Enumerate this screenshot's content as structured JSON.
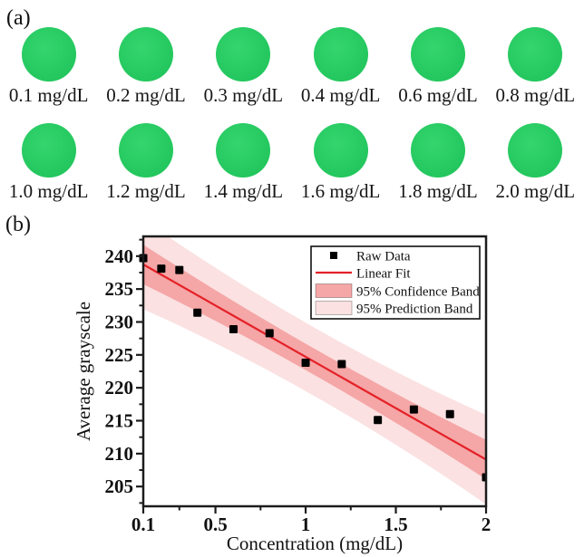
{
  "panel_a": {
    "label": "(a)",
    "circle_color": "#1ed05e",
    "rows": [
      {
        "samples": [
          {
            "label": "0.1 mg/dL"
          },
          {
            "label": "0.2 mg/dL"
          },
          {
            "label": "0.3 mg/dL"
          },
          {
            "label": "0.4 mg/dL"
          },
          {
            "label": "0.6 mg/dL"
          },
          {
            "label": "0.8 mg/dL"
          }
        ]
      },
      {
        "samples": [
          {
            "label": "1.0 mg/dL"
          },
          {
            "label": "1.2 mg/dL"
          },
          {
            "label": "1.4 mg/dL"
          },
          {
            "label": "1.6 mg/dL"
          },
          {
            "label": "1.8 mg/dL"
          },
          {
            "label": "2.0 mg/dL"
          }
        ]
      }
    ]
  },
  "panel_b": {
    "label": "(b)"
  },
  "chart_data": {
    "type": "scatter",
    "title": "",
    "xlabel": "Concentration (mg/dL)",
    "ylabel": "Average grayscale",
    "xlim": [
      0.1,
      2.0
    ],
    "ylim": [
      202,
      243
    ],
    "grid": false,
    "frame_color": "#1c1c1c",
    "x_major_ticks": [
      0.1,
      0.5,
      1.0,
      1.5,
      2.0
    ],
    "x_major_labels": [
      "0.1",
      "0.5",
      "1",
      "1.5",
      "2"
    ],
    "x_minor_ticks": [
      0.3,
      0.75,
      1.25,
      1.75
    ],
    "y_major_ticks": [
      205,
      210,
      215,
      220,
      225,
      230,
      235,
      240
    ],
    "y_minor_ticks": [
      202.5,
      207.5,
      212.5,
      217.5,
      222.5,
      227.5,
      232.5,
      237.5,
      242.5
    ],
    "raw_data": {
      "name": "Raw Data",
      "marker": "square",
      "color": "#000000",
      "x": [
        0.1,
        0.2,
        0.3,
        0.4,
        0.6,
        0.8,
        1.0,
        1.2,
        1.4,
        1.6,
        1.8,
        2.0
      ],
      "y": [
        239.7,
        238.1,
        237.9,
        231.4,
        228.9,
        228.3,
        223.8,
        223.6,
        215.1,
        216.7,
        216.0,
        206.4
      ]
    },
    "linear_fit": {
      "name": "Linear Fit",
      "color": "#e42128",
      "intercept": 240.3,
      "slope": -15.6
    },
    "confidence_band": {
      "name": "95% Confidence Band",
      "color": "#f5a6a6",
      "half_width_center": 2.0,
      "half_width_edge": 3.0
    },
    "prediction_band": {
      "name": "95% Prediction Band",
      "color": "#fbe1e2",
      "half_width_center": 5.2,
      "half_width_edge": 6.8
    },
    "legend": {
      "position": "top-right",
      "entries": [
        "Raw Data",
        "Linear Fit",
        "95% Confidence Band",
        "95% Prediction Band"
      ]
    }
  }
}
